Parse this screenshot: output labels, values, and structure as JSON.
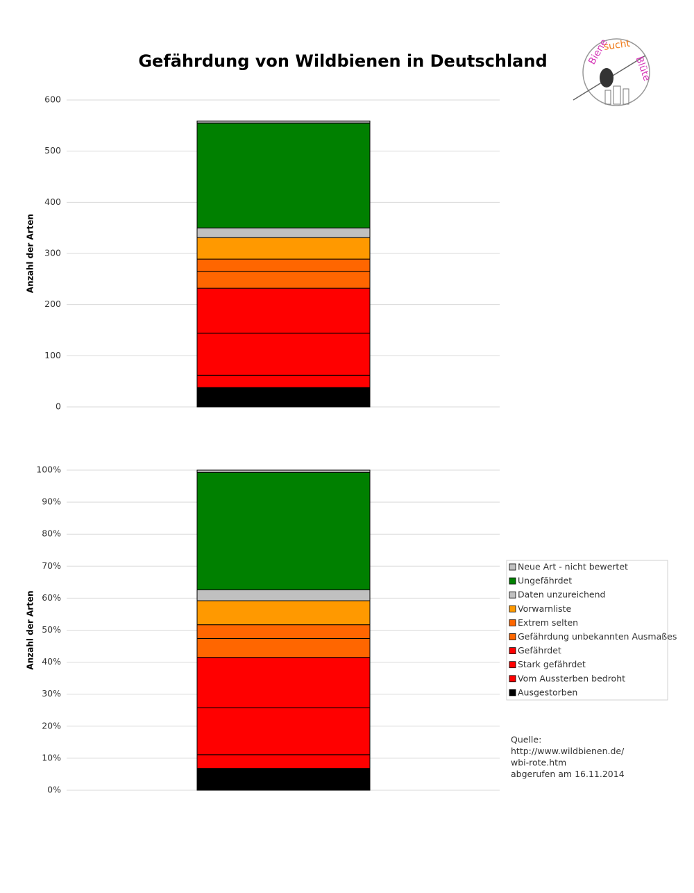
{
  "title": "Gefährdung von Wildbienen in Deutschland",
  "logo": [
    "Biene",
    "sucht",
    "Blüte"
  ],
  "source": [
    "Quelle:",
    "http://www.wildbienen.de/",
    "wbi-rote.htm",
    "abgerufen am 16.11.2014"
  ],
  "chart_data": [
    {
      "type": "bar",
      "stacked": true,
      "y_label": "Anzahl der Arten",
      "ylim": [
        0,
        600
      ],
      "yticks": [
        0,
        100,
        200,
        300,
        400,
        500,
        600
      ],
      "grid": true,
      "series": [
        {
          "color": "#000000",
          "values": [
            38
          ]
        },
        {
          "color": "#ff0000",
          "values": [
            24
          ]
        },
        {
          "color": "#ff0000",
          "values": [
            82
          ]
        },
        {
          "color": "#ff0000",
          "values": [
            88
          ]
        },
        {
          "color": "#ff6600",
          "values": [
            33
          ]
        },
        {
          "color": "#ff6600",
          "values": [
            24
          ]
        },
        {
          "color": "#ff9900",
          "values": [
            42
          ]
        },
        {
          "color": "#c0c0c0",
          "values": [
            19
          ]
        },
        {
          "color": "#008000",
          "values": [
            205
          ]
        },
        {
          "color": "#c0c0c0",
          "values": [
            4
          ]
        }
      ]
    },
    {
      "type": "bar",
      "stacked": true,
      "y_label": "Anzahl der Arten",
      "ylim": [
        0,
        100
      ],
      "yticks": [
        {
          "value": 0,
          "label": "0%"
        },
        {
          "value": 10,
          "label": "10%"
        },
        {
          "value": 20,
          "label": "20%"
        },
        {
          "value": 30,
          "label": "30%"
        },
        {
          "value": 40,
          "label": "40%"
        },
        {
          "value": 50,
          "label": "50%"
        },
        {
          "value": 60,
          "label": "60%"
        },
        {
          "value": 70,
          "label": "70%"
        },
        {
          "value": 80,
          "label": "80%"
        },
        {
          "value": 90,
          "label": "90%"
        },
        {
          "value": 100,
          "label": "100%"
        }
      ],
      "grid": true,
      "legend": "right",
      "series": [
        {
          "name": "Ausgestorben",
          "color": "#000000",
          "values": [
            6.8
          ]
        },
        {
          "name": "Vom Aussterben bedroht",
          "color": "#ff0000",
          "values": [
            4.3
          ]
        },
        {
          "name": "Stark gefährdet",
          "color": "#ff0000",
          "values": [
            14.7
          ]
        },
        {
          "name": "Gefährdet",
          "color": "#ff0000",
          "values": [
            15.7
          ]
        },
        {
          "name": "Gefährdung unbekannten Ausmaßes",
          "color": "#ff6600",
          "values": [
            5.9
          ]
        },
        {
          "name": "Extrem selten",
          "color": "#ff6600",
          "values": [
            4.3
          ]
        },
        {
          "name": "Vorwarnliste",
          "color": "#ff9900",
          "values": [
            7.5
          ]
        },
        {
          "name": "Daten unzureichend",
          "color": "#c0c0c0",
          "values": [
            3.4
          ]
        },
        {
          "name": "Ungefährdet",
          "color": "#008000",
          "values": [
            36.7
          ]
        },
        {
          "name": "Neue Art - nicht bewertet",
          "color": "#c0c0c0",
          "values": [
            0.7
          ]
        }
      ]
    }
  ]
}
